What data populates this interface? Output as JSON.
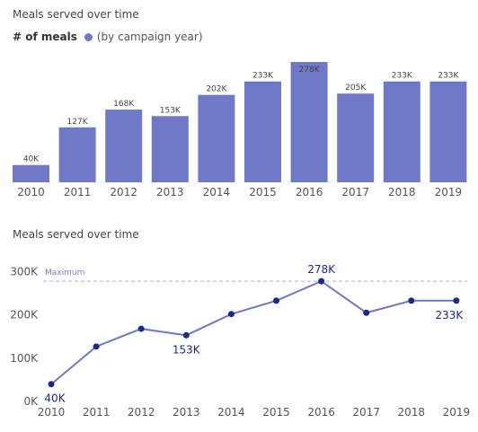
{
  "chart_data": [
    {
      "type": "bar",
      "title": "Meals served over time",
      "legend": {
        "title": "# of meals",
        "entry": "(by campaign year)",
        "color": "#7079c8",
        "placement": "top-left"
      },
      "categories": [
        "2010",
        "2011",
        "2012",
        "2013",
        "2014",
        "2015",
        "2016",
        "2017",
        "2018",
        "2019"
      ],
      "values": [
        40000,
        127000,
        168000,
        153000,
        202000,
        233000,
        278000,
        205000,
        233000,
        233000
      ],
      "data_labels": [
        "40K",
        "127K",
        "168K",
        "153K",
        "202K",
        "233K",
        "278K",
        "205K",
        "233K",
        "233K"
      ],
      "highlight_index": 6,
      "ylim": [
        0,
        278000
      ],
      "grid": false,
      "bar_color": "#7079c8"
    },
    {
      "type": "line",
      "title": "Meals served over time",
      "x": [
        "2010",
        "2011",
        "2012",
        "2013",
        "2014",
        "2015",
        "2016",
        "2017",
        "2018",
        "2019"
      ],
      "values": [
        40000,
        127000,
        168000,
        153000,
        202000,
        233000,
        278000,
        205000,
        233000,
        233000
      ],
      "ylim": [
        0,
        300000
      ],
      "yticks": [
        0,
        100000,
        200000,
        300000
      ],
      "ytick_labels": [
        "0K",
        "100K",
        "200K",
        "300K"
      ],
      "reference_line": {
        "label": "Maximum",
        "value": 278000
      },
      "point_labels": [
        {
          "index": 0,
          "text": "40K"
        },
        {
          "index": 3,
          "text": "153K"
        },
        {
          "index": 6,
          "text": "278K"
        },
        {
          "index": 9,
          "text": "233K"
        }
      ],
      "line_color": "#6f78c6",
      "marker_color": "#1b2a8a",
      "grid": false
    }
  ]
}
